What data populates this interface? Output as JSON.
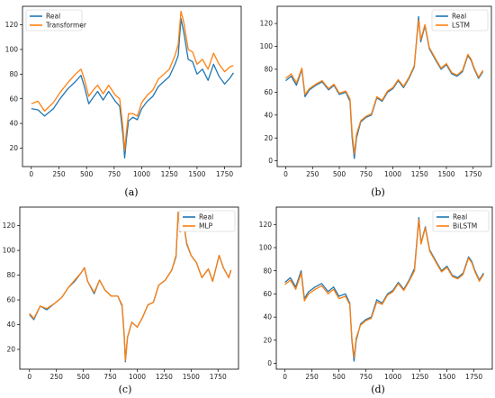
{
  "chart_data": [
    {
      "type": "line",
      "caption": "(a)",
      "legend": {
        "position": "top-left"
      },
      "xlim": [
        -80,
        1900
      ],
      "ylim": [
        5,
        135
      ],
      "xticks": [
        0,
        250,
        500,
        750,
        1000,
        1250,
        1500,
        1750
      ],
      "yticks": [
        20,
        40,
        60,
        80,
        100,
        120
      ],
      "series": [
        {
          "name": "Real",
          "color": "#1f77b4",
          "x": [
            0,
            60,
            120,
            200,
            260,
            330,
            400,
            450,
            480,
            520,
            560,
            600,
            650,
            700,
            760,
            800,
            830,
            845,
            860,
            880,
            920,
            960,
            1000,
            1050,
            1100,
            1150,
            1200,
            1250,
            1300,
            1330,
            1355,
            1380,
            1420,
            1460,
            1500,
            1550,
            1600,
            1650,
            1700,
            1750,
            1800,
            1830
          ],
          "values": [
            52,
            51,
            46,
            52,
            60,
            68,
            74,
            79,
            70,
            56,
            61,
            66,
            59,
            66,
            58,
            54,
            30,
            12,
            27,
            42,
            45,
            43,
            52,
            58,
            62,
            70,
            74,
            78,
            88,
            95,
            125,
            114,
            92,
            90,
            80,
            84,
            75,
            88,
            78,
            72,
            77,
            81
          ]
        },
        {
          "name": "Transformer",
          "color": "#ff7f0e",
          "x": [
            0,
            60,
            120,
            200,
            260,
            330,
            400,
            450,
            480,
            520,
            560,
            600,
            650,
            700,
            760,
            800,
            830,
            845,
            860,
            880,
            920,
            960,
            1000,
            1050,
            1100,
            1150,
            1200,
            1250,
            1300,
            1330,
            1355,
            1380,
            1420,
            1460,
            1500,
            1550,
            1600,
            1650,
            1700,
            1750,
            1800,
            1830
          ],
          "values": [
            56,
            58,
            50,
            57,
            65,
            73,
            80,
            84,
            76,
            62,
            67,
            71,
            64,
            71,
            63,
            60,
            36,
            18,
            33,
            48,
            48,
            46,
            57,
            63,
            67,
            76,
            80,
            84,
            95,
            104,
            131,
            122,
            100,
            98,
            88,
            92,
            84,
            97,
            88,
            82,
            86,
            87
          ]
        }
      ]
    },
    {
      "type": "line",
      "caption": "(b)",
      "legend": {
        "position": "top-right"
      },
      "xlim": [
        -80,
        1920
      ],
      "ylim": [
        -5,
        135
      ],
      "xticks": [
        0,
        250,
        500,
        750,
        1000,
        1250,
        1500,
        1750
      ],
      "yticks": [
        0,
        20,
        40,
        60,
        80,
        100,
        120
      ],
      "series": [
        {
          "name": "Real",
          "color": "#1f77b4",
          "x": [
            0,
            50,
            100,
            150,
            180,
            220,
            280,
            340,
            400,
            450,
            500,
            560,
            600,
            620,
            640,
            660,
            700,
            750,
            800,
            850,
            900,
            950,
            1000,
            1050,
            1100,
            1150,
            1200,
            1240,
            1260,
            1300,
            1340,
            1400,
            1450,
            1500,
            1550,
            1600,
            1650,
            1700,
            1730,
            1760,
            1800,
            1840
          ],
          "values": [
            70,
            74,
            66,
            80,
            56,
            62,
            66,
            69,
            62,
            66,
            58,
            60,
            52,
            20,
            2,
            20,
            34,
            38,
            40,
            55,
            52,
            60,
            63,
            70,
            64,
            72,
            82,
            126,
            104,
            118,
            98,
            88,
            80,
            84,
            76,
            74,
            78,
            92,
            88,
            80,
            72,
            78
          ]
        },
        {
          "name": "LSTM",
          "color": "#ff7f0e",
          "x": [
            0,
            50,
            100,
            150,
            180,
            220,
            280,
            340,
            400,
            450,
            500,
            560,
            600,
            620,
            640,
            660,
            700,
            750,
            800,
            850,
            900,
            950,
            1000,
            1050,
            1100,
            1150,
            1200,
            1240,
            1260,
            1300,
            1340,
            1400,
            1450,
            1500,
            1550,
            1600,
            1650,
            1700,
            1730,
            1760,
            1800,
            1840
          ],
          "values": [
            72,
            76,
            68,
            81,
            58,
            63,
            67,
            70,
            63,
            67,
            59,
            61,
            54,
            24,
            6,
            23,
            35,
            39,
            41,
            56,
            53,
            61,
            64,
            71,
            65,
            73,
            83,
            123,
            106,
            119,
            99,
            89,
            81,
            85,
            77,
            75,
            79,
            93,
            89,
            81,
            73,
            79
          ]
        }
      ]
    },
    {
      "type": "line",
      "caption": "(c)",
      "legend": {
        "position": "top-right"
      },
      "xlim": [
        -90,
        1940
      ],
      "ylim": [
        4,
        135
      ],
      "xticks": [
        0,
        250,
        500,
        750,
        1000,
        1250,
        1500,
        1750
      ],
      "yticks": [
        20,
        40,
        60,
        80,
        100,
        120
      ],
      "series": [
        {
          "name": "Real",
          "color": "#1f77b4",
          "x": [
            0,
            40,
            100,
            160,
            230,
            300,
            360,
            420,
            480,
            510,
            540,
            600,
            650,
            700,
            760,
            820,
            860,
            880,
            890,
            910,
            950,
            1000,
            1050,
            1100,
            1150,
            1200,
            1260,
            1320,
            1360,
            1380,
            1400,
            1420,
            1460,
            1500,
            1550,
            1600,
            1660,
            1700,
            1760,
            1800,
            1850,
            1870
          ],
          "values": [
            48,
            44,
            55,
            52,
            57,
            62,
            70,
            75,
            82,
            86,
            75,
            65,
            76,
            68,
            63,
            63,
            55,
            30,
            10,
            30,
            42,
            38,
            46,
            56,
            58,
            72,
            76,
            84,
            95,
            131,
            115,
            128,
            105,
            96,
            90,
            78,
            85,
            75,
            96,
            86,
            78,
            84
          ]
        },
        {
          "name": "MLP",
          "color": "#ff7f0e",
          "x": [
            0,
            40,
            100,
            160,
            230,
            300,
            360,
            420,
            480,
            510,
            540,
            600,
            650,
            700,
            760,
            820,
            860,
            880,
            890,
            910,
            950,
            1000,
            1050,
            1100,
            1150,
            1200,
            1260,
            1320,
            1360,
            1380,
            1400,
            1420,
            1460,
            1500,
            1550,
            1600,
            1660,
            1700,
            1760,
            1800,
            1850,
            1870
          ],
          "values": [
            49,
            45,
            55,
            53,
            57,
            62,
            70,
            76,
            82,
            86,
            75,
            66,
            76,
            68,
            63,
            63,
            56,
            31,
            11,
            30,
            42,
            38,
            46,
            56,
            58,
            72,
            76,
            84,
            96,
            131,
            115,
            128,
            106,
            96,
            90,
            78,
            85,
            75,
            96,
            86,
            78,
            84
          ]
        }
      ]
    },
    {
      "type": "line",
      "caption": "(d)",
      "legend": {
        "position": "top-right"
      },
      "xlim": [
        -80,
        1920
      ],
      "ylim": [
        -5,
        135
      ],
      "xticks": [
        0,
        250,
        500,
        750,
        1000,
        1250,
        1500,
        1750
      ],
      "yticks": [
        0,
        20,
        40,
        60,
        80,
        100,
        120
      ],
      "series": [
        {
          "name": "Real",
          "color": "#1f77b4",
          "x": [
            0,
            50,
            100,
            150,
            180,
            220,
            280,
            340,
            400,
            450,
            500,
            560,
            600,
            620,
            640,
            660,
            700,
            750,
            800,
            850,
            900,
            950,
            1000,
            1050,
            1100,
            1150,
            1200,
            1240,
            1260,
            1300,
            1340,
            1400,
            1450,
            1500,
            1550,
            1600,
            1650,
            1700,
            1730,
            1760,
            1800,
            1840
          ],
          "values": [
            70,
            74,
            66,
            80,
            56,
            62,
            66,
            69,
            62,
            66,
            58,
            60,
            52,
            20,
            2,
            20,
            34,
            38,
            40,
            55,
            52,
            60,
            63,
            70,
            64,
            72,
            82,
            126,
            104,
            118,
            98,
            88,
            80,
            84,
            76,
            74,
            78,
            92,
            88,
            80,
            72,
            78
          ]
        },
        {
          "name": "BiLSTM",
          "color": "#ff7f0e",
          "x": [
            0,
            50,
            100,
            150,
            180,
            220,
            280,
            340,
            400,
            450,
            500,
            560,
            600,
            620,
            640,
            660,
            700,
            750,
            800,
            850,
            900,
            950,
            1000,
            1050,
            1100,
            1150,
            1200,
            1240,
            1260,
            1300,
            1340,
            1400,
            1450,
            1500,
            1550,
            1600,
            1650,
            1700,
            1730,
            1760,
            1800,
            1840
          ],
          "values": [
            68,
            72,
            64,
            78,
            54,
            60,
            64,
            67,
            60,
            64,
            56,
            58,
            51,
            22,
            5,
            22,
            33,
            37,
            39,
            53,
            51,
            59,
            62,
            69,
            63,
            71,
            80,
            124,
            103,
            117,
            97,
            87,
            79,
            83,
            75,
            73,
            77,
            91,
            87,
            79,
            71,
            77
          ]
        }
      ]
    }
  ]
}
